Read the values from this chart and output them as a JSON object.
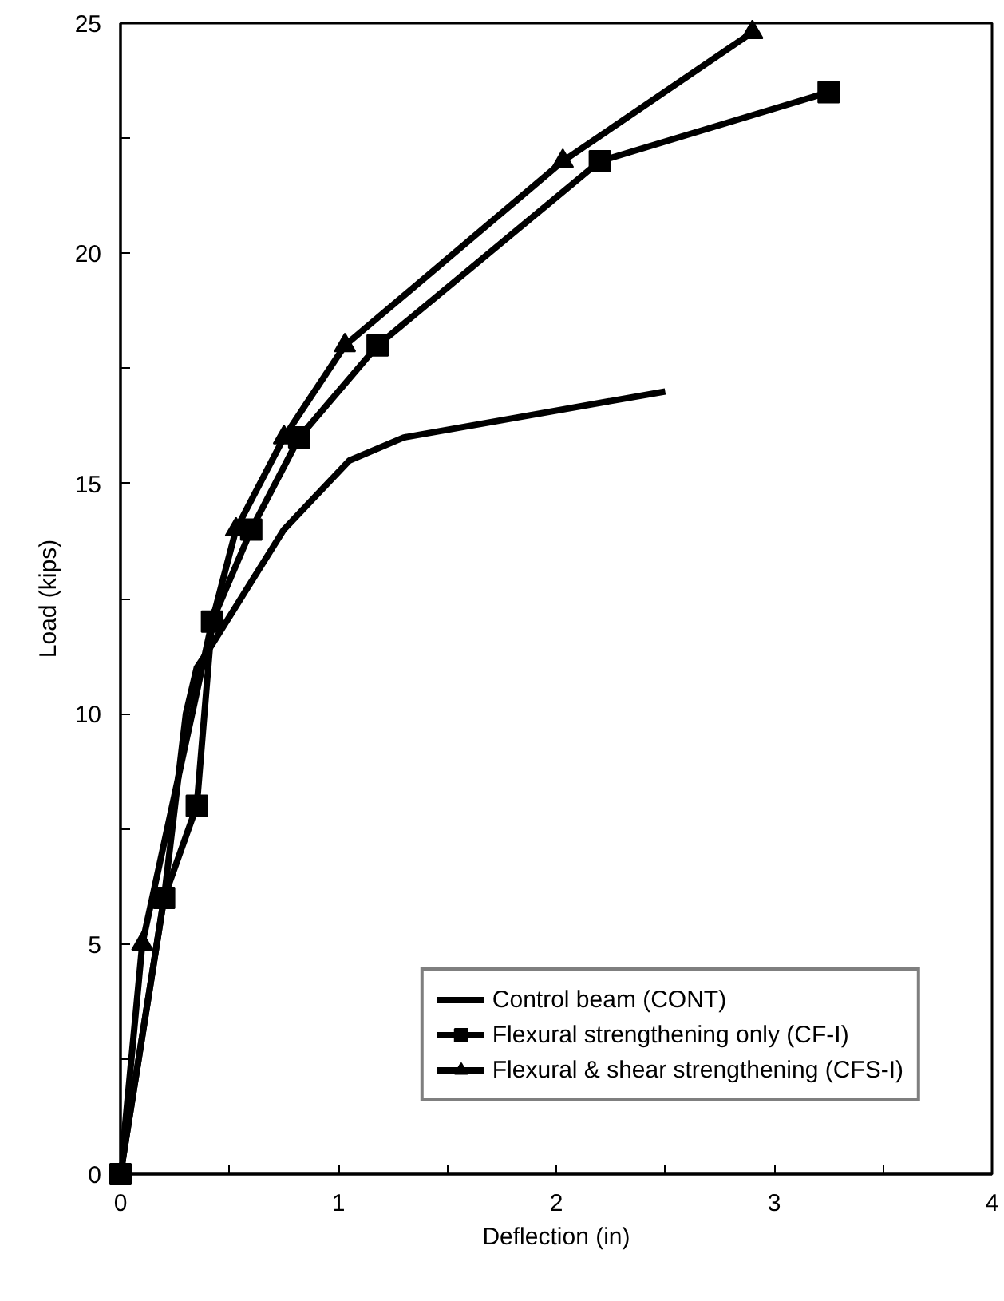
{
  "chart_data": {
    "type": "line",
    "xlabel": "Deflection (in)",
    "ylabel": "Load (kips)",
    "xlim": [
      0,
      4
    ],
    "ylim": [
      0,
      25
    ],
    "xticks": [
      0,
      {
        "value": 0.5,
        "label": null
      },
      1,
      {
        "value": 1.5,
        "label": null
      },
      2,
      {
        "value": 2.5,
        "label": null
      },
      3,
      {
        "value": 3.5,
        "label": null
      },
      4
    ],
    "yticks": [
      0,
      {
        "value": 2.5,
        "label": null
      },
      5,
      {
        "value": 7.5,
        "label": null
      },
      10,
      {
        "value": 12.5,
        "label": null
      },
      15,
      {
        "value": 17.5,
        "label": null
      },
      20,
      {
        "value": 22.5,
        "label": null
      },
      25
    ],
    "grid": false,
    "legend": "bottom right",
    "series": [
      {
        "name": "Control beam (CONT)",
        "color": "#000000",
        "marker": "none",
        "x": [
          0,
          0.1,
          0.2,
          0.3,
          0.35,
          0.42,
          0.75,
          1.05,
          1.3,
          2.5
        ],
        "values": [
          0,
          3,
          6,
          10,
          11,
          11.5,
          14,
          15.5,
          16,
          17
        ]
      },
      {
        "name": "Flexural strengthening only (CF-I)",
        "color": "#000000",
        "marker": "square",
        "x": [
          0,
          0.2,
          0.35,
          0.42,
          0.6,
          0.82,
          1.18,
          2.2,
          3.25
        ],
        "values": [
          0,
          6,
          8,
          12,
          14,
          16,
          18,
          22,
          23.5
        ]
      },
      {
        "name": "Flexural & shear strengthening (CFS-I)",
        "color": "#000000",
        "marker": "triangle",
        "x": [
          0,
          0.1,
          0.42,
          0.53,
          0.75,
          1.03,
          2.03,
          2.9
        ],
        "values": [
          0,
          5,
          12,
          14,
          16,
          18,
          22,
          24.8
        ]
      }
    ]
  }
}
